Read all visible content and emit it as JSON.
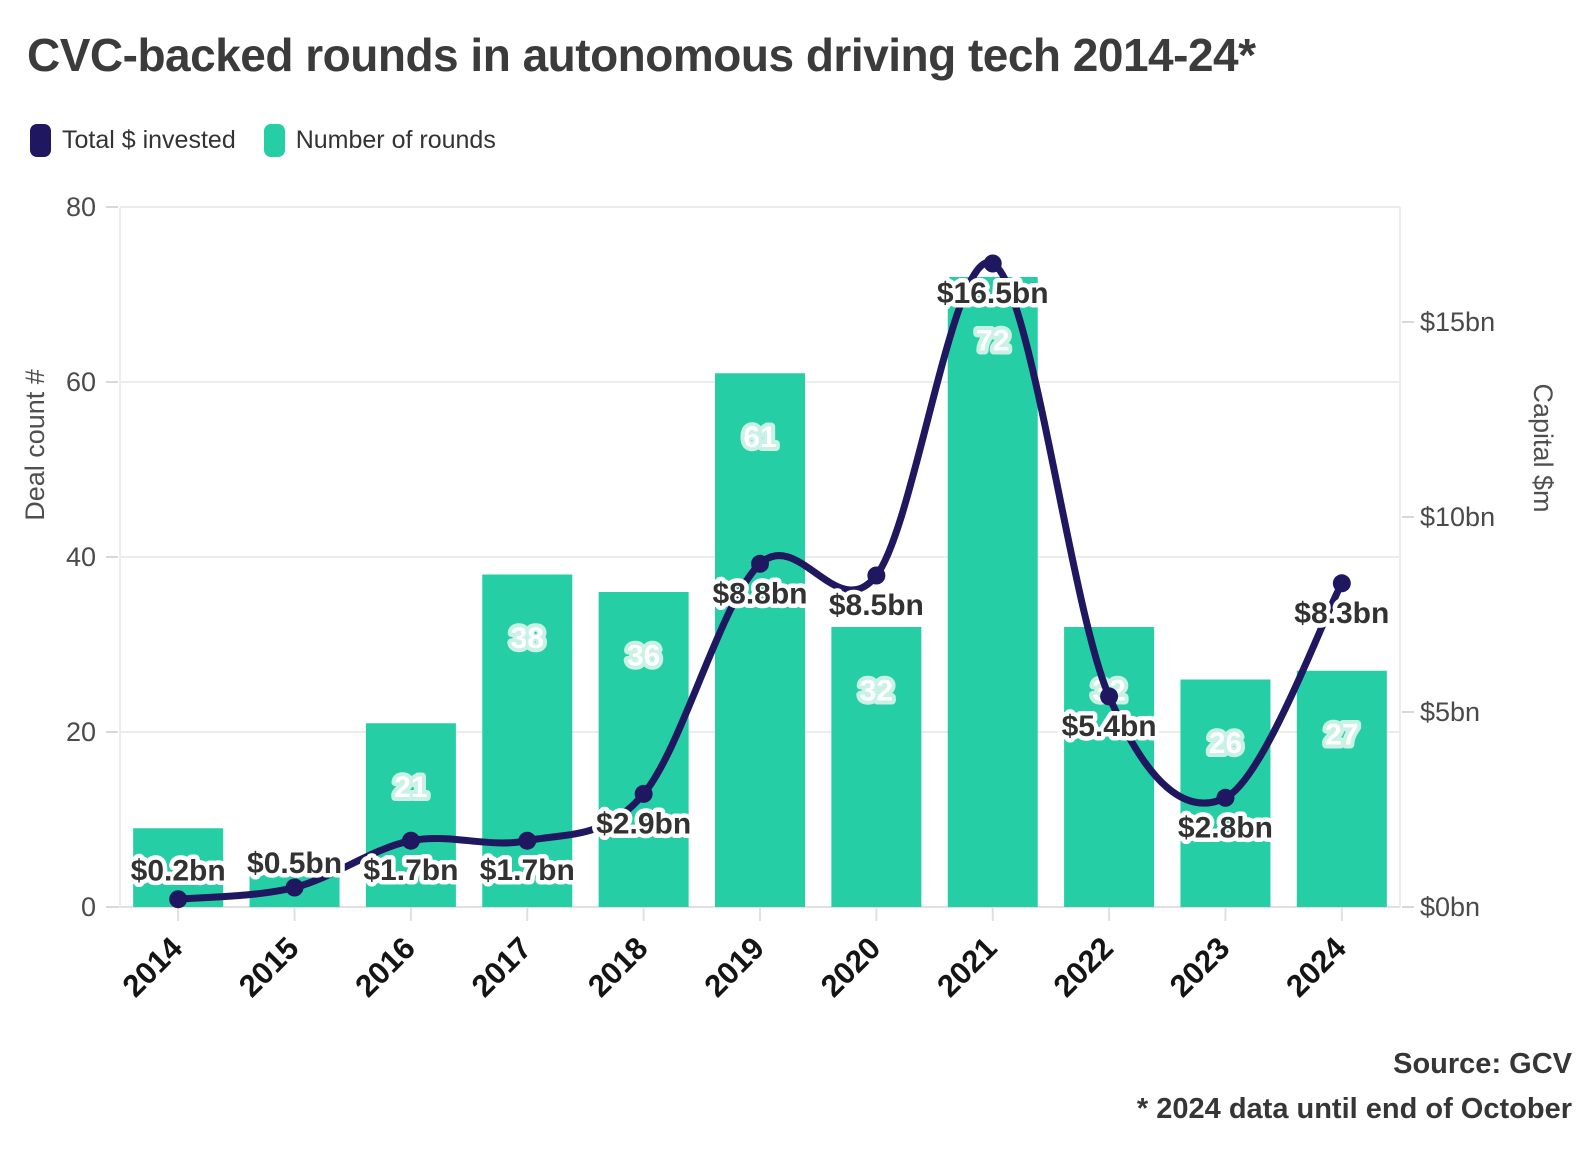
{
  "title": "CVC-backed rounds in autonomous driving tech 2014-24*",
  "legend": [
    {
      "label": "Total $ invested",
      "color": "#1f175f"
    },
    {
      "label": "Number of rounds",
      "color": "#25cea4"
    }
  ],
  "source": "Source: GCV",
  "footnote": "* 2024 data until end of October",
  "chart_data": {
    "type": "bar+line",
    "title": "CVC-backed rounds in autonomous driving tech 2014-24*",
    "categories": [
      "2014",
      "2015",
      "2016",
      "2017",
      "2018",
      "2019",
      "2020",
      "2021",
      "2022",
      "2023",
      "2024"
    ],
    "series": [
      {
        "name": "Number of rounds",
        "type": "bar",
        "axis": "left",
        "color": "#25cea4",
        "values": [
          9,
          4,
          21,
          38,
          36,
          61,
          32,
          72,
          32,
          26,
          27
        ],
        "labels": [
          null,
          null,
          "21",
          "38",
          "36",
          "61",
          "32",
          "72",
          "32",
          "26",
          "27"
        ]
      },
      {
        "name": "Total $ invested",
        "type": "line",
        "axis": "right",
        "color": "#1f175f",
        "values_bn": [
          0.2,
          0.5,
          1.7,
          1.7,
          2.9,
          8.8,
          8.5,
          16.5,
          5.4,
          2.8,
          8.3
        ],
        "labels": [
          "$0.2bn",
          "$0.5bn",
          "$1.7bn",
          "$1.7bn",
          "$2.9bn",
          "$8.8bn",
          "$8.5bn",
          "$16.5bn",
          "$5.4bn",
          "$2.8bn",
          "$8.3bn"
        ]
      }
    ],
    "axes": {
      "left": {
        "label": "Deal count #",
        "ticks": [
          "0",
          "20",
          "40",
          "60",
          "80"
        ],
        "tick_values": [
          0,
          20,
          40,
          60,
          80
        ],
        "max": 80
      },
      "right": {
        "label": "Capital $m",
        "ticks": [
          "$0bn",
          "$5bn",
          "$10bn",
          "$15bn"
        ],
        "tick_values_bn": [
          0,
          5,
          10,
          15
        ]
      },
      "x": {
        "labels": [
          "2014",
          "2015",
          "2016",
          "2017",
          "2018",
          "2019",
          "2020",
          "2021",
          "2022",
          "2023",
          "2024"
        ]
      }
    },
    "grid": "horizontal-only",
    "legend_position": "top-left"
  }
}
